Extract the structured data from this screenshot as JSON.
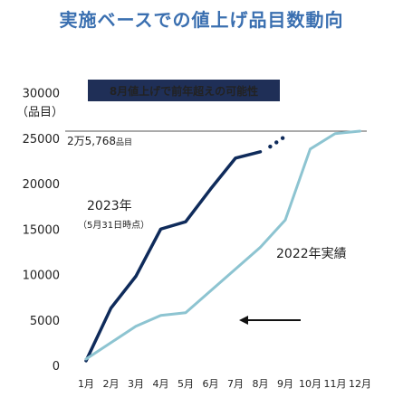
{
  "title": "実施ベースでの値上げ品目数動向",
  "chart_data": {
    "type": "line",
    "categories": [
      "1月",
      "2月",
      "3月",
      "4月",
      "5月",
      "6月",
      "7月",
      "8月",
      "9月",
      "10月",
      "11月",
      "12月"
    ],
    "ylim": [
      0,
      30000
    ],
    "yticks": [
      0,
      5000,
      10000,
      15000,
      20000,
      25000,
      30000
    ],
    "ylabel": "（品目）",
    "grid": false,
    "series": [
      {
        "name": "2023年",
        "sublabel": "（5月31日時点）",
        "color": "#0f2b5b",
        "values": [
          500,
          6300,
          9800,
          15000,
          15800,
          19400,
          22800,
          23500,
          null,
          null,
          null,
          null
        ],
        "projection": [
          23500,
          25000
        ]
      },
      {
        "name": "2022年実績",
        "color": "#8dc4d1",
        "values": [
          700,
          2500,
          4300,
          5500,
          5800,
          8200,
          10600,
          13000,
          16000,
          23800,
          25500,
          25768
        ]
      }
    ],
    "annotations": {
      "badge": "8月値上げで前年超えの可能性",
      "reference_line_value": 25768,
      "reference_label_num": "2万5,768",
      "reference_label_unit": "品目",
      "arrow_direction": "left"
    }
  }
}
